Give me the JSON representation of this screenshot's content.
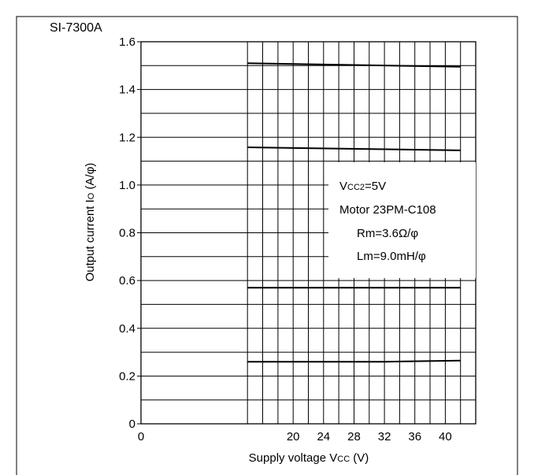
{
  "chart_data": {
    "type": "line",
    "title": "SI-7300A",
    "xlabel_main": "Supply voltage V",
    "xlabel_sub": "CC",
    "xlabel_unit": " (V)",
    "ylabel_main": "Output current I",
    "ylabel_sub": "O",
    "ylabel_unit": " (A/φ)",
    "xlim": [
      0,
      44
    ],
    "ylim": [
      0,
      1.6
    ],
    "x_tick_labels": [
      "0",
      "20",
      "24",
      "28",
      "32",
      "36",
      "40"
    ],
    "y_tick_labels": [
      "0",
      "0.2",
      "0.4",
      "0.6",
      "0.8",
      "1.0",
      "1.2",
      "1.4",
      "1.6"
    ],
    "grid": true,
    "legend": "none",
    "series": [
      {
        "x": [
          14,
          42
        ],
        "y": [
          1.51,
          1.495
        ]
      },
      {
        "x": [
          14,
          42
        ],
        "y": [
          1.158,
          1.145
        ]
      },
      {
        "x": [
          14,
          42
        ],
        "y": [
          0.57,
          0.57
        ]
      },
      {
        "x": [
          14,
          32,
          42
        ],
        "y": [
          0.26,
          0.26,
          0.265
        ]
      }
    ],
    "annotation": {
      "line1_main": "V",
      "line1_sub": "CC2",
      "line1_rest": "=5V",
      "line2": "Motor 23PM-C108",
      "line3": "Rm=3.6Ω/φ",
      "line4": "Lm=9.0mH/φ"
    }
  }
}
